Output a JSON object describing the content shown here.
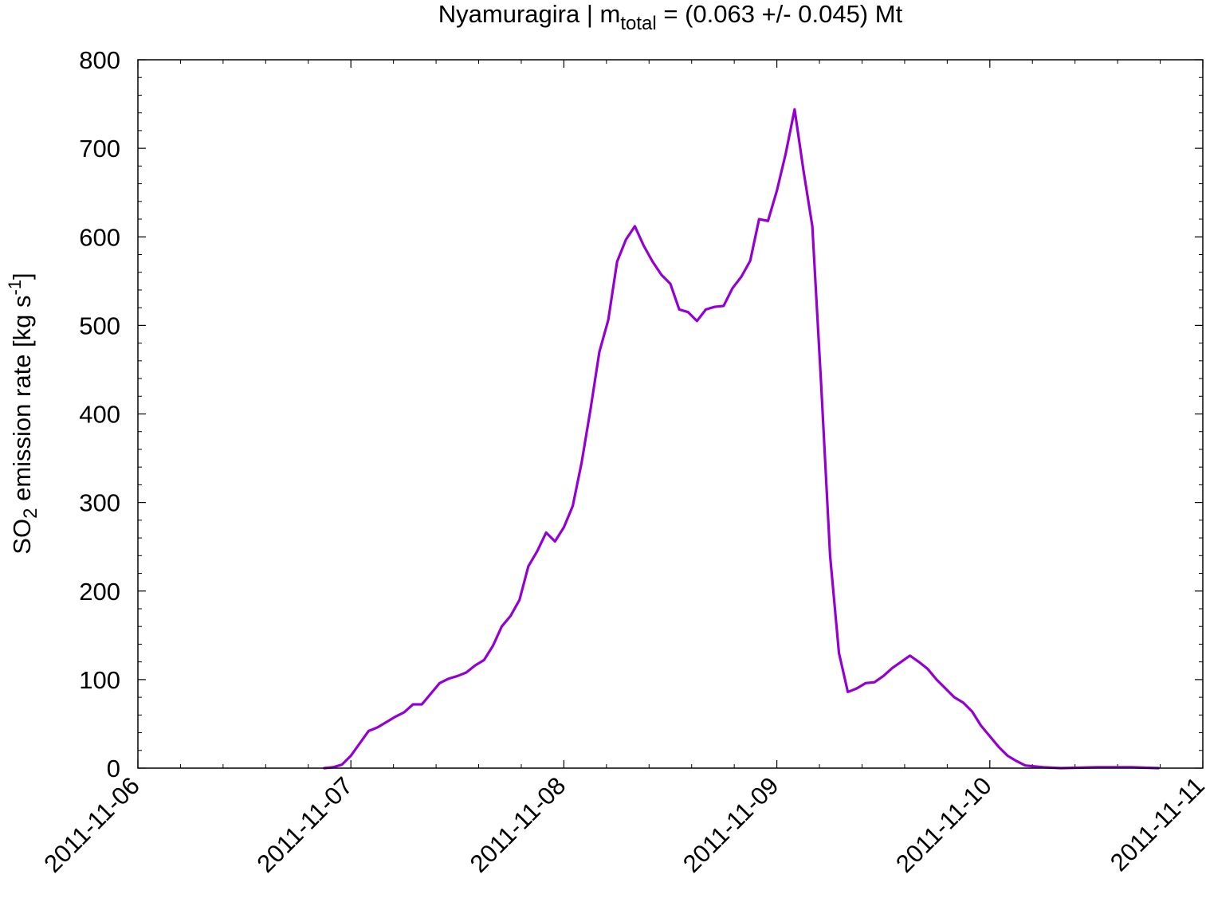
{
  "chart_data": {
    "type": "line",
    "title": {
      "prefix": "Nyamuragira | m",
      "subscript": "total",
      "suffix": " = (0.063 +/- 0.045) Mt"
    },
    "ylabel": {
      "prefix": "SO",
      "subscript": "2",
      "middle": " emission rate [kg s",
      "superscript": "-1",
      "suffix": "]"
    },
    "xlabel": "",
    "x_axis": {
      "type": "date",
      "min": "2011-11-06",
      "max": "2011-11-11",
      "ticks": [
        "2011-11-06",
        "2011-11-07",
        "2011-11-08",
        "2011-11-09",
        "2011-11-10",
        "2011-11-11"
      ],
      "minor_ticks_per_major": 4
    },
    "y_axis": {
      "min": 0,
      "max": 800,
      "ticks": [
        0,
        100,
        200,
        300,
        400,
        500,
        600,
        700,
        800
      ],
      "minor_ticks_per_major": 4
    },
    "grid": false,
    "legend": "none",
    "series": [
      {
        "color": "#9400d3",
        "points": [
          [
            "2011-11-06T21:00",
            0
          ],
          [
            "2011-11-06T22:00",
            1
          ],
          [
            "2011-11-06T23:00",
            4
          ],
          [
            "2011-11-07T00:00",
            14
          ],
          [
            "2011-11-07T01:00",
            28
          ],
          [
            "2011-11-07T02:00",
            42
          ],
          [
            "2011-11-07T03:00",
            46
          ],
          [
            "2011-11-07T04:00",
            52
          ],
          [
            "2011-11-07T05:00",
            58
          ],
          [
            "2011-11-07T06:00",
            63
          ],
          [
            "2011-11-07T07:00",
            72
          ],
          [
            "2011-11-07T08:00",
            72
          ],
          [
            "2011-11-07T09:00",
            84
          ],
          [
            "2011-11-07T10:00",
            96
          ],
          [
            "2011-11-07T11:00",
            101
          ],
          [
            "2011-11-07T12:00",
            104
          ],
          [
            "2011-11-07T13:00",
            108
          ],
          [
            "2011-11-07T14:00",
            116
          ],
          [
            "2011-11-07T15:00",
            122
          ],
          [
            "2011-11-07T16:00",
            138
          ],
          [
            "2011-11-07T17:00",
            160
          ],
          [
            "2011-11-07T18:00",
            172
          ],
          [
            "2011-11-07T19:00",
            190
          ],
          [
            "2011-11-07T20:00",
            228
          ],
          [
            "2011-11-07T21:00",
            245
          ],
          [
            "2011-11-07T22:00",
            266
          ],
          [
            "2011-11-07T23:00",
            256
          ],
          [
            "2011-11-08T00:00",
            272
          ],
          [
            "2011-11-08T01:00",
            296
          ],
          [
            "2011-11-08T02:00",
            345
          ],
          [
            "2011-11-08T03:00",
            405
          ],
          [
            "2011-11-08T04:00",
            470
          ],
          [
            "2011-11-08T05:00",
            506
          ],
          [
            "2011-11-08T06:00",
            572
          ],
          [
            "2011-11-08T07:00",
            597
          ],
          [
            "2011-11-08T08:00",
            612
          ],
          [
            "2011-11-08T09:00",
            590
          ],
          [
            "2011-11-08T10:00",
            572
          ],
          [
            "2011-11-08T11:00",
            557
          ],
          [
            "2011-11-08T12:00",
            547
          ],
          [
            "2011-11-08T13:00",
            518
          ],
          [
            "2011-11-08T14:00",
            515
          ],
          [
            "2011-11-08T15:00",
            505
          ],
          [
            "2011-11-08T16:00",
            518
          ],
          [
            "2011-11-08T17:00",
            521
          ],
          [
            "2011-11-08T18:00",
            522
          ],
          [
            "2011-11-08T19:00",
            542
          ],
          [
            "2011-11-08T20:00",
            555
          ],
          [
            "2011-11-08T21:00",
            573
          ],
          [
            "2011-11-08T22:00",
            620
          ],
          [
            "2011-11-08T23:00",
            618
          ],
          [
            "2011-11-09T00:00",
            652
          ],
          [
            "2011-11-09T01:00",
            694
          ],
          [
            "2011-11-09T02:00",
            744
          ],
          [
            "2011-11-09T03:00",
            675
          ],
          [
            "2011-11-09T04:00",
            612
          ],
          [
            "2011-11-09T05:00",
            432
          ],
          [
            "2011-11-09T06:00",
            240
          ],
          [
            "2011-11-09T07:00",
            130
          ],
          [
            "2011-11-09T08:00",
            86
          ],
          [
            "2011-11-09T09:00",
            90
          ],
          [
            "2011-11-09T10:00",
            96
          ],
          [
            "2011-11-09T11:00",
            97
          ],
          [
            "2011-11-09T12:00",
            104
          ],
          [
            "2011-11-09T13:00",
            113
          ],
          [
            "2011-11-09T14:00",
            120
          ],
          [
            "2011-11-09T15:00",
            127
          ],
          [
            "2011-11-09T16:00",
            120
          ],
          [
            "2011-11-09T17:00",
            112
          ],
          [
            "2011-11-09T18:00",
            100
          ],
          [
            "2011-11-09T19:00",
            90
          ],
          [
            "2011-11-09T20:00",
            80
          ],
          [
            "2011-11-09T21:00",
            74
          ],
          [
            "2011-11-09T22:00",
            64
          ],
          [
            "2011-11-09T23:00",
            48
          ],
          [
            "2011-11-10T00:00",
            36
          ],
          [
            "2011-11-10T01:00",
            24
          ],
          [
            "2011-11-10T02:00",
            14
          ],
          [
            "2011-11-10T03:00",
            8
          ],
          [
            "2011-11-10T04:00",
            3
          ],
          [
            "2011-11-10T06:00",
            1
          ],
          [
            "2011-11-10T08:00",
            0
          ],
          [
            "2011-11-10T12:00",
            1
          ],
          [
            "2011-11-10T16:00",
            1
          ],
          [
            "2011-11-10T19:00",
            0
          ]
        ]
      }
    ]
  }
}
